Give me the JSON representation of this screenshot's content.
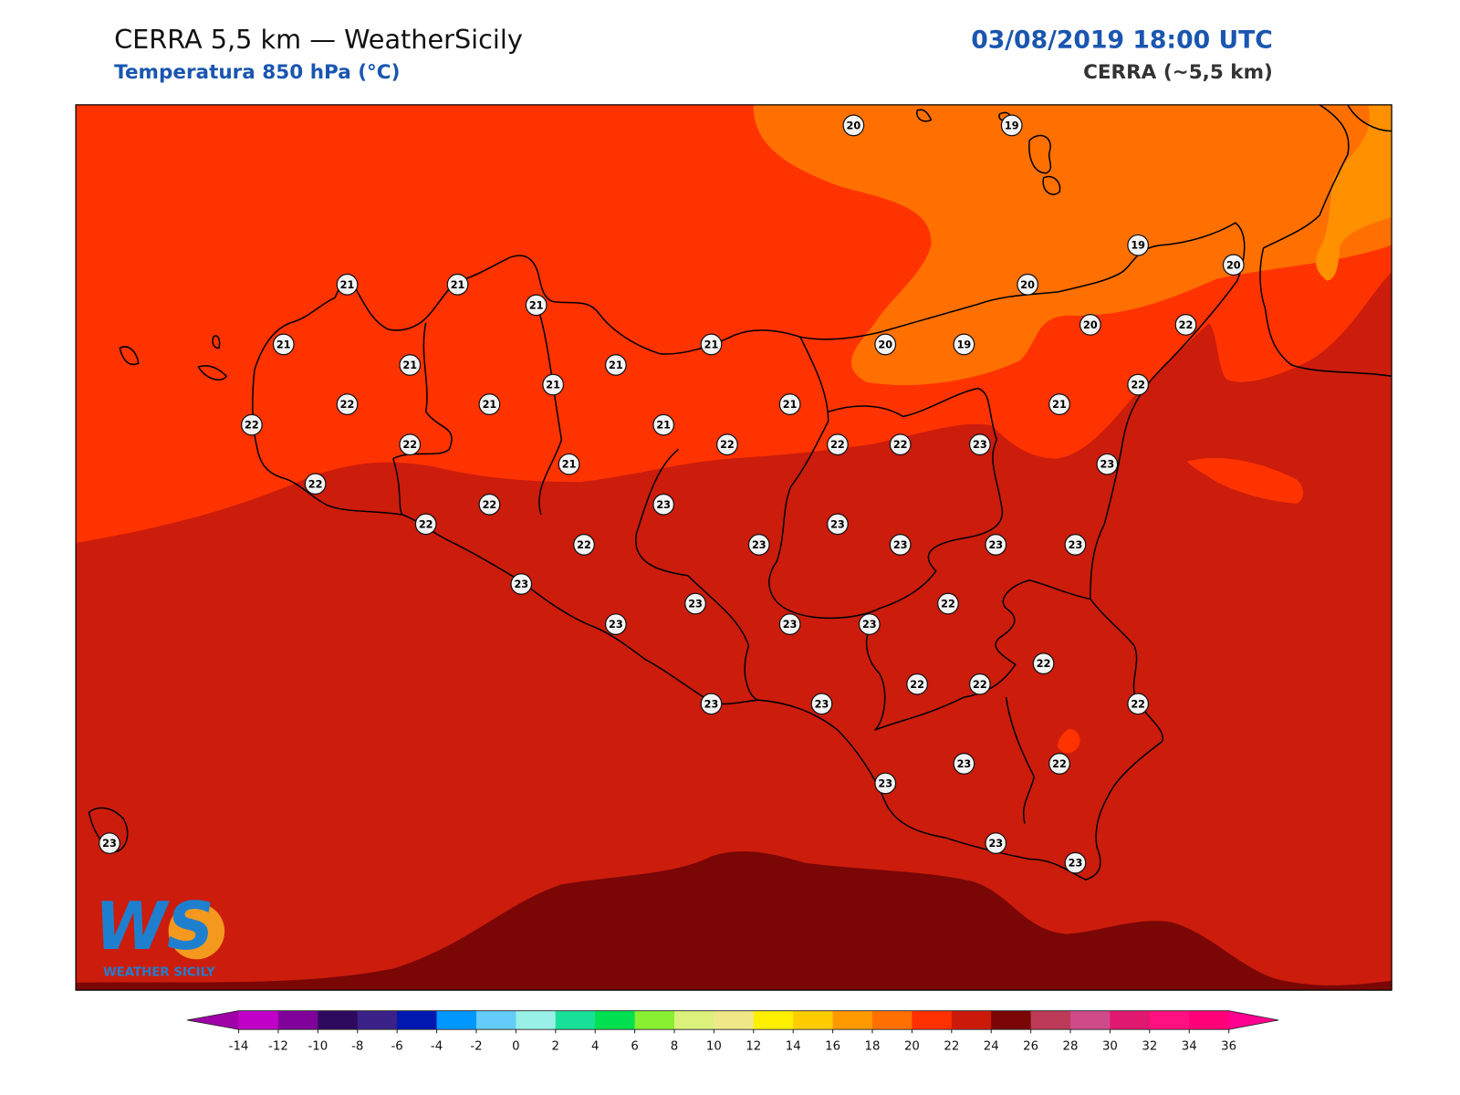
{
  "header": {
    "title": "CERRA 5,5 km — WeatherSicily",
    "subtitle": "Temperatura 850 hPa (°C)",
    "datetime": "03/08/2019 18:00 UTC",
    "model": "CERRA (~5,5 km)"
  },
  "stations": [
    20,
    19,
    19,
    20,
    20,
    21,
    21,
    21,
    20,
    22,
    21,
    21,
    20,
    19,
    21,
    21,
    21,
    22,
    22,
    21,
    21,
    21,
    22,
    21,
    22,
    22,
    22,
    22,
    23,
    21,
    23,
    22,
    22,
    23,
    22,
    23,
    22,
    23,
    23,
    23,
    23,
    23,
    23,
    22,
    23,
    23,
    23,
    22,
    22,
    22,
    23,
    23,
    22,
    23,
    22,
    23,
    23,
    23,
    23
  ],
  "colorbar": {
    "ticks": [
      -14,
      -12,
      -10,
      -8,
      -6,
      -4,
      -2,
      0,
      2,
      4,
      6,
      8,
      10,
      12,
      14,
      16,
      18,
      20,
      22,
      24,
      26,
      28,
      30,
      32,
      34,
      36
    ],
    "colors": [
      "#c000c8",
      "#80009a",
      "#2e0a5e",
      "#3a2288",
      "#0018b0",
      "#0098ff",
      "#64ccf8",
      "#98f0e6",
      "#18e098",
      "#00e050",
      "#88f030",
      "#dcf07c",
      "#f0e888",
      "#fff000",
      "#ffcc00",
      "#ff9900",
      "#ff7000",
      "#ff3000",
      "#cc1a0a",
      "#7a0606",
      "#bc3a58",
      "#cf4a88",
      "#e01870",
      "#ff1080",
      "#ff0078"
    ],
    "under_color": "#a000a8",
    "over_color": "#ff0090"
  },
  "logo": {
    "mark": "WS",
    "text": "WEATHER SICILY"
  }
}
